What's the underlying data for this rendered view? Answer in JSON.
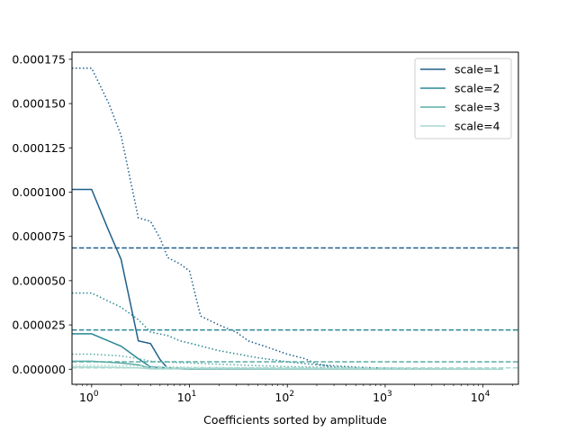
{
  "chart_data": {
    "type": "line",
    "xlabel": "Coefficients sorted by amplitude",
    "ylabel": "",
    "xscale": "log",
    "xlim": [
      0.63,
      23000
    ],
    "ylim": [
      -8.5e-06,
      0.000179
    ],
    "grid": false,
    "legend": "top-right",
    "x_ticks": [
      {
        "value": 1,
        "exp": "0"
      },
      {
        "value": 10,
        "exp": "1"
      },
      {
        "value": 100,
        "exp": "2"
      },
      {
        "value": 1000,
        "exp": "3"
      },
      {
        "value": 10000,
        "exp": "4"
      }
    ],
    "x_tick_base": "10",
    "y_ticks": [
      {
        "value": 0,
        "label": "0.000000"
      },
      {
        "value": 2.5e-05,
        "label": "0.000025"
      },
      {
        "value": 5e-05,
        "label": "0.000050"
      },
      {
        "value": 7.5e-05,
        "label": "0.000075"
      },
      {
        "value": 0.0001,
        "label": "0.000100"
      },
      {
        "value": 0.000125,
        "label": "0.000125"
      },
      {
        "value": 0.00015,
        "label": "0.000150"
      },
      {
        "value": 0.000175,
        "label": "0.000175"
      }
    ],
    "series": [
      {
        "name": "scale=1",
        "color": "#1f5f8b",
        "solid": [
          [
            0.63,
            0.0001015
          ],
          [
            1,
            0.0001015
          ],
          [
            1.5,
            7.8e-05
          ],
          [
            2,
            6.2e-05
          ],
          [
            3,
            1.6e-05
          ],
          [
            4,
            1.45e-05
          ],
          [
            5,
            5.5e-06
          ],
          [
            6,
            5e-07
          ],
          [
            10,
            0
          ],
          [
            100,
            0
          ],
          [
            1000,
            0
          ],
          [
            16000,
            0
          ]
        ],
        "dotted": [
          [
            0.63,
            0.00017
          ],
          [
            1,
            0.00017
          ],
          [
            1.5,
            0.00015
          ],
          [
            2,
            0.000132
          ],
          [
            3,
            8.55e-05
          ],
          [
            4,
            8.35e-05
          ],
          [
            5,
            7.4e-05
          ],
          [
            6,
            6.3e-05
          ],
          [
            8,
            5.95e-05
          ],
          [
            10,
            5.55e-05
          ],
          [
            13,
            3e-05
          ],
          [
            20,
            2.5e-05
          ],
          [
            30,
            2.1e-05
          ],
          [
            40,
            1.6e-05
          ],
          [
            60,
            1.28e-05
          ],
          [
            100,
            8.5e-06
          ],
          [
            150,
            6e-06
          ],
          [
            200,
            3e-06
          ],
          [
            300,
            1.2e-06
          ],
          [
            1000,
            3e-07
          ],
          [
            16000,
            0
          ]
        ],
        "hline": 6.85e-05
      },
      {
        "name": "scale=2",
        "color": "#2a8894",
        "solid": [
          [
            0.63,
            2e-05
          ],
          [
            1,
            2e-05
          ],
          [
            2,
            1.3e-05
          ],
          [
            3,
            6e-06
          ],
          [
            4,
            1.2e-06
          ],
          [
            10,
            2e-07
          ],
          [
            100,
            0
          ],
          [
            1000,
            0
          ],
          [
            16000,
            0
          ]
        ],
        "dotted": [
          [
            0.63,
            4.3e-05
          ],
          [
            1,
            4.3e-05
          ],
          [
            2,
            3.5e-05
          ],
          [
            3,
            2.8e-05
          ],
          [
            4,
            2.1e-05
          ],
          [
            6,
            1.9e-05
          ],
          [
            8,
            1.6e-05
          ],
          [
            10,
            1.48e-05
          ],
          [
            20,
            1.05e-05
          ],
          [
            50,
            6.5e-06
          ],
          [
            100,
            4.2e-06
          ],
          [
            200,
            2.5e-06
          ],
          [
            500,
            1.2e-06
          ],
          [
            1000,
            6e-07
          ],
          [
            3000,
            2e-07
          ],
          [
            16000,
            0
          ]
        ],
        "hline": 2.22e-05
      },
      {
        "name": "scale=3",
        "color": "#5aada5",
        "solid": [
          [
            0.63,
            4.5e-06
          ],
          [
            1,
            4.5e-06
          ],
          [
            2,
            3.5e-06
          ],
          [
            3,
            2.5e-06
          ],
          [
            4,
            5e-07
          ],
          [
            10,
            2e-07
          ],
          [
            16000,
            0
          ]
        ],
        "dotted": [
          [
            0.63,
            8.5e-06
          ],
          [
            1,
            8.5e-06
          ],
          [
            2,
            7.5e-06
          ],
          [
            3,
            6e-06
          ],
          [
            4,
            4.5e-06
          ],
          [
            10,
            3.5e-06
          ],
          [
            50,
            2e-06
          ],
          [
            100,
            1.5e-06
          ],
          [
            1000,
            5e-07
          ],
          [
            16000,
            0
          ]
        ],
        "hline": 4.2e-06
      },
      {
        "name": "scale=4",
        "color": "#a9d8cf",
        "solid": [
          [
            0.63,
            1.2e-06
          ],
          [
            1,
            1.2e-06
          ],
          [
            3,
            8e-07
          ],
          [
            4,
            2e-07
          ],
          [
            16000,
            0
          ]
        ],
        "dotted": [
          [
            0.63,
            2.2e-06
          ],
          [
            1,
            2.2e-06
          ],
          [
            3,
            1.8e-06
          ],
          [
            10,
            1.2e-06
          ],
          [
            100,
            6e-07
          ],
          [
            1000,
            2e-07
          ],
          [
            16000,
            0
          ]
        ],
        "hline": 8e-07
      }
    ]
  }
}
